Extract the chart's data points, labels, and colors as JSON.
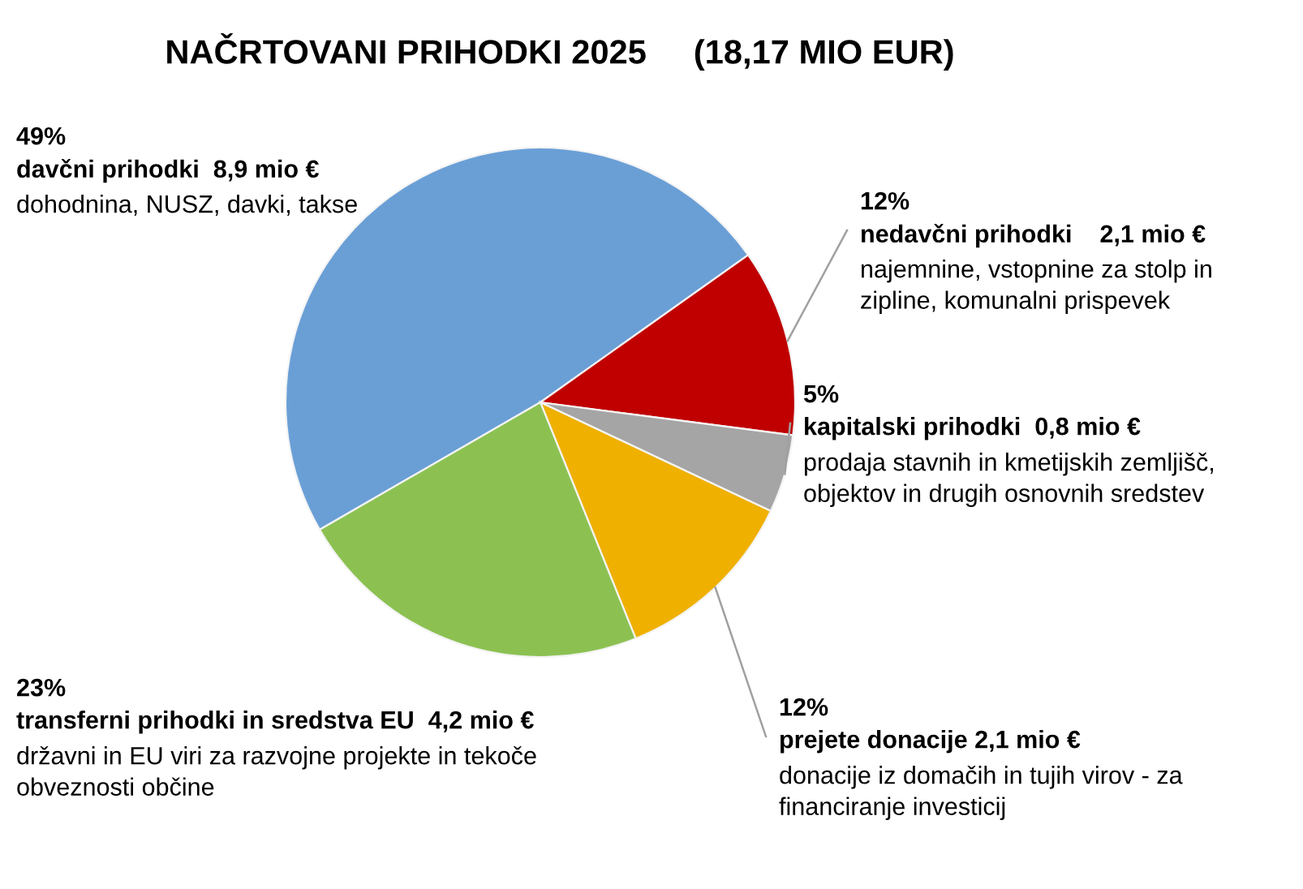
{
  "chart_data": {
    "type": "pie",
    "title": "NAČRTOVANI PRIHODKI 2025     (18,17 MIO EUR)",
    "categories": [
      "davčni prihodki  8,9 mio €",
      "nedavčni prihodki    2,1 mio €",
      "kapitalski prihodki  0,8 mio €",
      "prejete donacije 2,1 mio €",
      "transferni prihodki in sredstva EU  4,2 mio €"
    ],
    "values": [
      49,
      12,
      5,
      12,
      23
    ],
    "value_labels": [
      "49%",
      "12%",
      "5%",
      "12%",
      "23%"
    ],
    "colors": [
      "#6a9fd6",
      "#c00000",
      "#a5a5a5",
      "#efb000",
      "#8cc152"
    ],
    "annotations": [
      "dohodnina, NUSZ, davki, takse",
      "najemnine, vstopnine za stolp in\nzipline, komunalni prispevek",
      "prodaja stavnih in kmetijskih zemljišč,\nobjektov in drugih osnovnih sredstev",
      "donacije iz domačih in tujih virov - za\nfinanciranje investicij",
      "državni in EU viri za razvojne projekte in tekoče\nobveznosti občine"
    ]
  }
}
